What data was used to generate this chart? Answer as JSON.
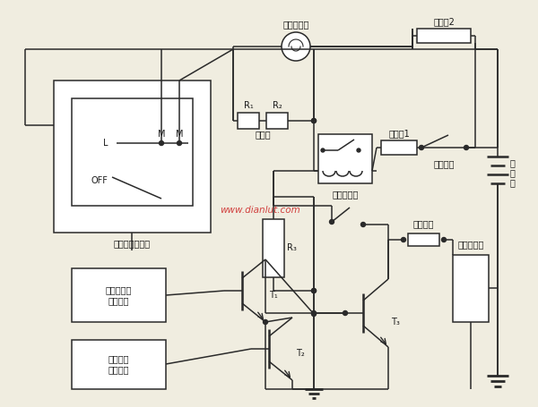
{
  "bg_color": "#f0ede0",
  "line_color": "#2a2a2a",
  "text_color": "#1a1a1a",
  "watermark": "www.dianlut.com",
  "watermark_color": "#cc2222",
  "labels": {
    "blower_motor": "鼓风电动机",
    "fuse2": "熔断丝2",
    "fuse1": "熔断丝1",
    "ignition_switch": "点火开关",
    "ac_relay": "空调继电器",
    "blower_switch": "鼓风机风量开关",
    "resistor": "电阻器",
    "battery_v": "蓄",
    "battery_e": "电",
    "battery_c": "池",
    "pressure_switch": "压力开关",
    "em_clutch": "电磁离合器",
    "engine_speed": "发动机转速\n检测电路",
    "car_temp": "车内温度\n检测电路",
    "R1": "R₁",
    "R2": "R₂",
    "R3": "R₃",
    "T1": "T₁",
    "T2": "T₂",
    "T3": "T₃",
    "L": "L",
    "M": "M",
    "OFF": "OFF"
  }
}
